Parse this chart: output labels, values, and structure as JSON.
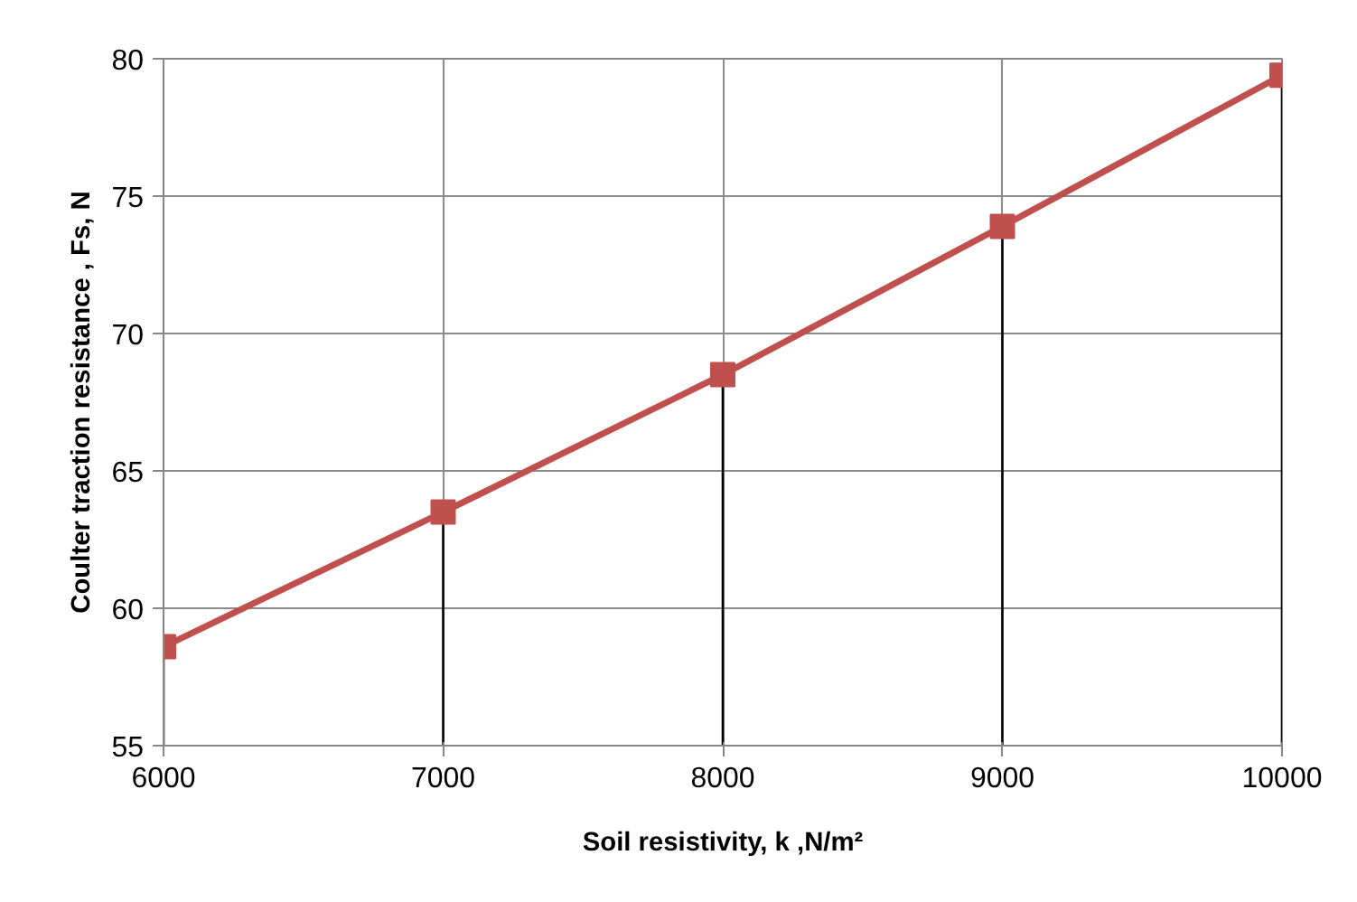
{
  "chart_data": {
    "type": "line",
    "xlabel": "Soil resistivity, k ,N/m²",
    "ylabel": "Coulter traction resistance , Fs, N",
    "x": [
      6000,
      7000,
      8000,
      9000,
      10000
    ],
    "series": [
      {
        "color": "#c0504d",
        "values": [
          58.6,
          63.5,
          68.5,
          73.9,
          79.4
        ]
      },
      {
        "type": "lollipop",
        "color": "#c0504d",
        "values": [
          58.6,
          63.5,
          68.5,
          73.9,
          79.4
        ],
        "marker": "square"
      }
    ],
    "xlim": [
      6000,
      10000
    ],
    "xticks": [
      6000,
      7000,
      8000,
      9000,
      10000
    ],
    "ylim": [
      55,
      80
    ],
    "yticks": [
      55,
      60,
      65,
      70,
      75,
      80
    ],
    "grid": true,
    "line_style": "solid"
  }
}
